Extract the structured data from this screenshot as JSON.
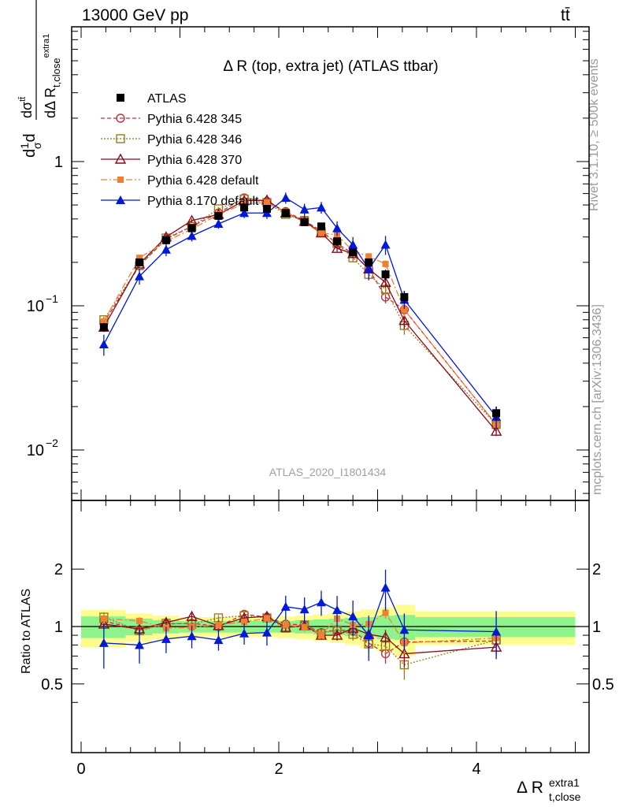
{
  "header": {
    "energy_label": "13000 GeV pp",
    "process_label": "tt̄"
  },
  "side_labels": {
    "rivet": "Rivet 3.1.10, ≥ 500k events",
    "mcplots": "mcplots.cern.ch [arXiv:1306.3436]"
  },
  "chart_data": [
    {
      "type": "scatter",
      "title": "Δ R (top, extra jet) (ATLAS ttbar)",
      "ylabel": "dσ/dΔR(t,close extra1) normalised",
      "xlabel": "Δ R t,close extra1",
      "y_scale": "log",
      "xlim": [
        -0.05,
        5.05
      ],
      "ylim": [
        0.005,
        6
      ],
      "analysis_id": "ATLAS_2020_I1801434",
      "x": [
        0.23,
        0.59,
        0.86,
        1.12,
        1.39,
        1.65,
        1.88,
        2.07,
        2.26,
        2.43,
        2.59,
        2.75,
        2.91,
        3.08,
        3.27,
        4.2
      ],
      "series": [
        {
          "name": "ATLAS",
          "color": "#000000",
          "marker": "square-filled",
          "line": "none",
          "values": [
            0.071,
            0.2,
            0.285,
            0.345,
            0.42,
            0.48,
            0.47,
            0.44,
            0.38,
            0.355,
            0.28,
            0.235,
            0.2,
            0.165,
            0.115,
            0.018
          ],
          "errors": [
            0.005,
            0.01,
            0.012,
            0.014,
            0.016,
            0.018,
            0.018,
            0.018,
            0.016,
            0.016,
            0.014,
            0.014,
            0.013,
            0.013,
            0.012,
            0.002
          ]
        },
        {
          "name": "Pythia 6.428 345",
          "color": "#c03040",
          "marker": "circle-open",
          "dash": "5,3",
          "values": [
            0.076,
            0.19,
            0.29,
            0.355,
            0.44,
            0.56,
            0.53,
            0.45,
            0.39,
            0.33,
            0.27,
            0.23,
            0.18,
            0.115,
            0.094,
            0.015
          ],
          "errors": [
            0.004,
            0.008,
            0.01,
            0.012,
            0.014,
            0.016,
            0.016,
            0.015,
            0.014,
            0.014,
            0.013,
            0.013,
            0.012,
            0.011,
            0.01,
            0.001
          ]
        },
        {
          "name": "Pythia 6.428 346",
          "color": "#9b7a20",
          "marker": "square-open",
          "dash": "2,2",
          "values": [
            0.08,
            0.19,
            0.295,
            0.355,
            0.47,
            0.55,
            0.52,
            0.43,
            0.39,
            0.325,
            0.27,
            0.215,
            0.165,
            0.13,
            0.073,
            0.015
          ],
          "errors": [
            0.004,
            0.008,
            0.01,
            0.012,
            0.014,
            0.016,
            0.016,
            0.015,
            0.014,
            0.014,
            0.013,
            0.013,
            0.012,
            0.011,
            0.01,
            0.001
          ]
        },
        {
          "name": "Pythia 6.428 370",
          "color": "#8b0a1c",
          "marker": "triangle-open",
          "dash": "",
          "values": [
            0.071,
            0.195,
            0.3,
            0.39,
            0.43,
            0.535,
            0.54,
            0.44,
            0.385,
            0.32,
            0.25,
            0.23,
            0.18,
            0.145,
            0.079,
            0.0135
          ],
          "errors": [
            0.004,
            0.008,
            0.01,
            0.012,
            0.014,
            0.016,
            0.016,
            0.015,
            0.014,
            0.014,
            0.013,
            0.013,
            0.012,
            0.011,
            0.01,
            0.001
          ]
        },
        {
          "name": "Pythia 6.428 default",
          "color": "#f08030",
          "marker": "square-filled-small",
          "dash": "8,3,2,3",
          "values": [
            0.078,
            0.215,
            0.28,
            0.34,
            0.43,
            0.51,
            0.52,
            0.45,
            0.375,
            0.32,
            0.31,
            0.24,
            0.22,
            0.195,
            0.094,
            0.015
          ],
          "errors": [
            0.004,
            0.008,
            0.01,
            0.012,
            0.014,
            0.016,
            0.016,
            0.015,
            0.014,
            0.014,
            0.013,
            0.013,
            0.012,
            0.011,
            0.01,
            0.001
          ]
        },
        {
          "name": "Pythia 8.170 default",
          "color": "#0018d8",
          "marker": "triangle-filled",
          "dash": "",
          "values": [
            0.054,
            0.16,
            0.245,
            0.305,
            0.37,
            0.44,
            0.44,
            0.56,
            0.465,
            0.48,
            0.345,
            0.265,
            0.18,
            0.265,
            0.11,
            0.017
          ],
          "errors": [
            0.009,
            0.02,
            0.024,
            0.026,
            0.028,
            0.035,
            0.04,
            0.05,
            0.045,
            0.045,
            0.04,
            0.035,
            0.03,
            0.04,
            0.015,
            0.003
          ]
        }
      ],
      "legend_position": "top-left"
    },
    {
      "type": "scatter",
      "ylabel": "Ratio to ATLAS",
      "xlim": [
        -0.05,
        5.05
      ],
      "ylim": [
        0.3,
        2.35
      ],
      "x_ticks": [
        "0",
        "2",
        "4"
      ],
      "y_ticks": [
        "0.5",
        "1",
        "2"
      ],
      "band_bins": [
        0.0,
        0.45,
        0.72,
        0.99,
        1.25,
        1.52,
        1.77,
        1.98,
        2.16,
        2.35,
        2.51,
        2.67,
        2.83,
        2.99,
        3.17,
        3.38,
        5.0
      ],
      "band_green": [
        0.13,
        0.1,
        0.08,
        0.07,
        0.07,
        0.07,
        0.07,
        0.07,
        0.08,
        0.09,
        0.1,
        0.11,
        0.12,
        0.14,
        0.15,
        0.12
      ],
      "band_yellow": [
        0.22,
        0.17,
        0.14,
        0.12,
        0.12,
        0.12,
        0.12,
        0.13,
        0.14,
        0.16,
        0.18,
        0.2,
        0.23,
        0.26,
        0.3,
        0.2
      ],
      "x": [
        0.23,
        0.59,
        0.86,
        1.12,
        1.39,
        1.65,
        1.88,
        2.07,
        2.26,
        2.43,
        2.59,
        2.75,
        2.91,
        3.08,
        3.27,
        4.2
      ],
      "series": [
        {
          "name": "Pythia 6.428 345",
          "values": [
            1.07,
            0.96,
            1.03,
            1.04,
            1.0,
            1.16,
            1.12,
            1.03,
            1.02,
            0.93,
            0.96,
            0.95,
            0.82,
            0.72,
            0.83,
            0.84
          ]
        },
        {
          "name": "Pythia 6.428 346",
          "values": [
            1.12,
            0.95,
            1.04,
            1.03,
            1.11,
            1.14,
            1.11,
            0.98,
            1.02,
            0.92,
            0.96,
            0.91,
            0.81,
            0.79,
            0.63,
            0.85
          ]
        },
        {
          "name": "Pythia 6.428 370",
          "values": [
            1.03,
            0.97,
            1.05,
            1.13,
            1.01,
            1.11,
            1.13,
            0.99,
            1.01,
            0.9,
            0.9,
            0.98,
            0.91,
            0.88,
            0.72,
            0.78
          ]
        },
        {
          "name": "Pythia 6.428 default",
          "values": [
            1.1,
            1.07,
            0.98,
            0.99,
            1.02,
            1.06,
            1.1,
            1.02,
            0.99,
            0.91,
            1.1,
            1.02,
            1.03,
            1.18,
            0.82,
            0.87
          ]
        },
        {
          "name": "Pythia 8.170 default",
          "values": [
            0.82,
            0.8,
            0.86,
            0.89,
            0.85,
            0.92,
            0.93,
            1.27,
            1.23,
            1.34,
            1.22,
            1.13,
            0.9,
            1.6,
            0.96,
            0.94
          ]
        }
      ]
    }
  ]
}
